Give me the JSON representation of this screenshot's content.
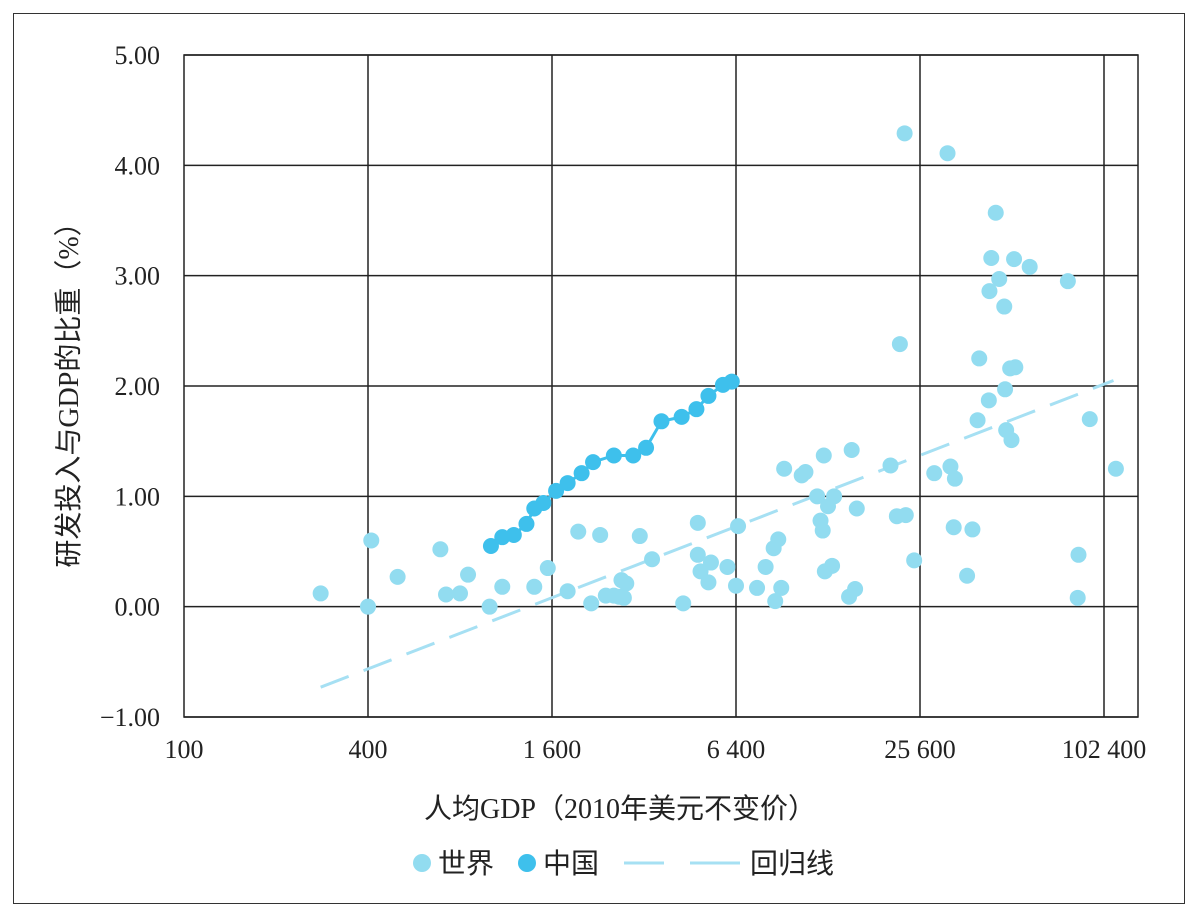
{
  "chart_data": {
    "type": "scatter",
    "title": "",
    "xlabel": "人均GDP（2010年美元不变价）",
    "ylabel": "研发投入与GDP的比重（%）",
    "x_scale": "log2",
    "xlim": [
      100,
      120000
    ],
    "ylim": [
      -1.0,
      5.0
    ],
    "x_ticks": [
      100,
      400,
      1600,
      6400,
      25600,
      102400
    ],
    "x_tick_labels": [
      "100",
      "400",
      "1 600",
      "6 400",
      "25 600",
      "102 400"
    ],
    "y_ticks": [
      -1.0,
      0.0,
      1.0,
      2.0,
      3.0,
      4.0,
      5.0
    ],
    "y_tick_labels": [
      "−1.00",
      "0.00",
      "1.00",
      "2.00",
      "3.00",
      "4.00",
      "5.00"
    ],
    "grid": true,
    "legend_position": "bottom",
    "colors": {
      "world": "#92dcf0",
      "china": "#3ec0ec",
      "regression": "#a6e0f3",
      "grid": "#222222"
    },
    "series": [
      {
        "name": "世界",
        "kind": "points",
        "points": [
          [
            280,
            0.12
          ],
          [
            410,
            0.6
          ],
          [
            400,
            0.0
          ],
          [
            500,
            0.27
          ],
          [
            690,
            0.52
          ],
          [
            720,
            0.11
          ],
          [
            800,
            0.12
          ],
          [
            850,
            0.29
          ],
          [
            1000,
            0.0
          ],
          [
            1100,
            0.18
          ],
          [
            1400,
            0.18
          ],
          [
            1550,
            0.35
          ],
          [
            1800,
            0.14
          ],
          [
            1950,
            0.68
          ],
          [
            2150,
            0.03
          ],
          [
            2300,
            0.65
          ],
          [
            2400,
            0.1
          ],
          [
            2550,
            0.1
          ],
          [
            2650,
            0.09
          ],
          [
            2700,
            0.24
          ],
          [
            2750,
            0.08
          ],
          [
            2800,
            0.21
          ],
          [
            3100,
            0.64
          ],
          [
            3400,
            0.43
          ],
          [
            4300,
            0.03
          ],
          [
            4800,
            0.76
          ],
          [
            4800,
            0.47
          ],
          [
            4900,
            0.32
          ],
          [
            5200,
            0.22
          ],
          [
            5300,
            0.4
          ],
          [
            6000,
            0.36
          ],
          [
            6400,
            0.19
          ],
          [
            6500,
            0.73
          ],
          [
            7500,
            0.17
          ],
          [
            8000,
            0.36
          ],
          [
            8500,
            0.53
          ],
          [
            8600,
            0.05
          ],
          [
            8800,
            0.61
          ],
          [
            9000,
            0.17
          ],
          [
            9200,
            1.25
          ],
          [
            10500,
            1.19
          ],
          [
            10800,
            1.22
          ],
          [
            11800,
            1.0
          ],
          [
            12100,
            0.78
          ],
          [
            12300,
            0.69
          ],
          [
            12400,
            1.37
          ],
          [
            12500,
            0.32
          ],
          [
            12800,
            0.91
          ],
          [
            13200,
            0.37
          ],
          [
            13400,
            1.0
          ],
          [
            15000,
            0.09
          ],
          [
            15300,
            1.42
          ],
          [
            15700,
            0.16
          ],
          [
            15900,
            0.89
          ],
          [
            20500,
            1.28
          ],
          [
            21500,
            0.82
          ],
          [
            22000,
            2.38
          ],
          [
            22800,
            4.29
          ],
          [
            23000,
            0.83
          ],
          [
            24500,
            0.42
          ],
          [
            28500,
            1.21
          ],
          [
            31500,
            4.11
          ],
          [
            32200,
            1.27
          ],
          [
            33000,
            0.72
          ],
          [
            33300,
            1.16
          ],
          [
            36500,
            0.28
          ],
          [
            38000,
            0.7
          ],
          [
            39500,
            1.69
          ],
          [
            40000,
            2.25
          ],
          [
            43000,
            1.87
          ],
          [
            43200,
            2.86
          ],
          [
            43800,
            3.16
          ],
          [
            45300,
            3.57
          ],
          [
            46500,
            2.97
          ],
          [
            48300,
            2.72
          ],
          [
            48600,
            1.97
          ],
          [
            49000,
            1.6
          ],
          [
            50500,
            2.16
          ],
          [
            51000,
            1.51
          ],
          [
            52000,
            3.15
          ],
          [
            52500,
            2.17
          ],
          [
            58500,
            3.08
          ],
          [
            78000,
            2.95
          ],
          [
            84000,
            0.08
          ],
          [
            84500,
            0.47
          ],
          [
            92000,
            1.7
          ],
          [
            112000,
            1.25
          ]
        ]
      },
      {
        "name": "中国",
        "kind": "line-with-markers",
        "points": [
          [
            1010,
            0.55
          ],
          [
            1100,
            0.63
          ],
          [
            1200,
            0.65
          ],
          [
            1320,
            0.75
          ],
          [
            1400,
            0.89
          ],
          [
            1500,
            0.94
          ],
          [
            1650,
            1.05
          ],
          [
            1800,
            1.12
          ],
          [
            2000,
            1.21
          ],
          [
            2180,
            1.31
          ],
          [
            2550,
            1.37
          ],
          [
            2950,
            1.37
          ],
          [
            3250,
            1.44
          ],
          [
            3650,
            1.68
          ],
          [
            4250,
            1.72
          ],
          [
            4750,
            1.79
          ],
          [
            5200,
            1.91
          ],
          [
            5800,
            2.01
          ],
          [
            6200,
            2.04
          ]
        ]
      },
      {
        "name": "回归线",
        "kind": "regression",
        "points": [
          [
            280,
            -0.73
          ],
          [
            110000,
            2.05
          ]
        ]
      }
    ],
    "legend": [
      {
        "label": "世界",
        "marker": "dot",
        "color_key": "world"
      },
      {
        "label": "中国",
        "marker": "dot",
        "color_key": "china"
      },
      {
        "label": "回归线",
        "marker": "dashed-line",
        "color_key": "regression"
      }
    ]
  }
}
